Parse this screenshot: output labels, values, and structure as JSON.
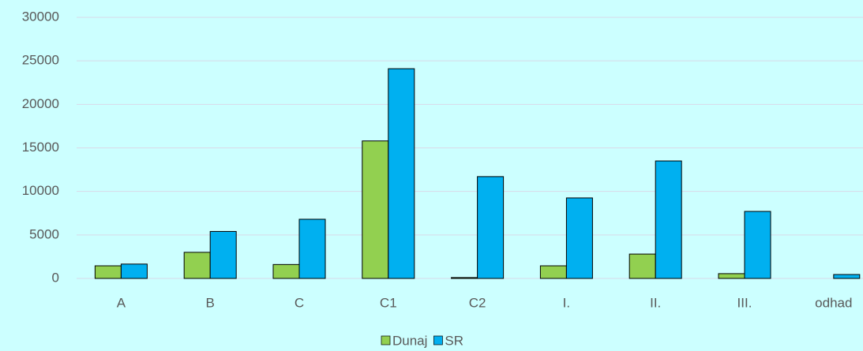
{
  "chart_data": {
    "type": "bar",
    "categories": [
      "A",
      "B",
      "C",
      "C1",
      "C2",
      "I.",
      "II.",
      "III.",
      "odhad"
    ],
    "series": [
      {
        "name": "Dunaj",
        "color": "#92d050",
        "values": [
          1450,
          3000,
          1600,
          15800,
          100,
          1450,
          2800,
          550,
          0
        ]
      },
      {
        "name": "SR",
        "color": "#00b0f0",
        "values": [
          1650,
          5400,
          6800,
          24100,
          11700,
          9250,
          13500,
          7700,
          450
        ]
      }
    ],
    "ylim": [
      0,
      30000
    ],
    "yticks": [
      0,
      5000,
      10000,
      15000,
      20000,
      25000,
      30000
    ],
    "grid": true,
    "legend": "bottom"
  }
}
